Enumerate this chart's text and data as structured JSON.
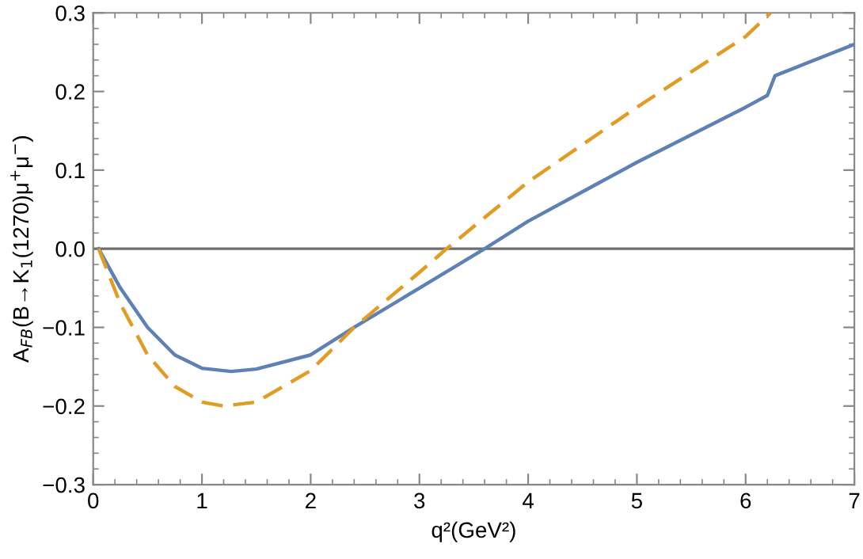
{
  "chart_data": {
    "type": "line",
    "xlabel": "q²(GeV²)",
    "ylabel": "A$_{FB}$(B→K$_{1}$(1270)μ$^{+}$μ$^{−}$)",
    "xlim": [
      0,
      7
    ],
    "ylim": [
      -0.3,
      0.3
    ],
    "xticks": [
      0,
      1,
      2,
      3,
      4,
      5,
      6,
      7,
      {
        "value": 0.2,
        "label": null
      },
      {
        "value": 0.4,
        "label": null
      },
      {
        "value": 0.6,
        "label": null
      },
      {
        "value": 0.8,
        "label": null
      },
      {
        "value": 1.2,
        "label": null
      },
      {
        "value": 1.4,
        "label": null
      },
      {
        "value": 1.6,
        "label": null
      },
      {
        "value": 1.8,
        "label": null
      },
      {
        "value": 2.2,
        "label": null
      },
      {
        "value": 2.4,
        "label": null
      },
      {
        "value": 2.6,
        "label": null
      },
      {
        "value": 2.8,
        "label": null
      },
      {
        "value": 3.2,
        "label": null
      },
      {
        "value": 3.4,
        "label": null
      },
      {
        "value": 3.6,
        "label": null
      },
      {
        "value": 3.8,
        "label": null
      },
      {
        "value": 4.2,
        "label": null
      },
      {
        "value": 4.4,
        "label": null
      },
      {
        "value": 4.6,
        "label": null
      },
      {
        "value": 4.8,
        "label": null
      },
      {
        "value": 5.2,
        "label": null
      },
      {
        "value": 5.4,
        "label": null
      },
      {
        "value": 5.6,
        "label": null
      },
      {
        "value": 5.8,
        "label": null
      },
      {
        "value": 6.2,
        "label": null
      },
      {
        "value": 6.4,
        "label": null
      },
      {
        "value": 6.6,
        "label": null
      },
      {
        "value": 6.8,
        "label": null
      }
    ],
    "yticks": [
      {
        "value": -0.3,
        "label": "−0.3"
      },
      {
        "value": -0.2,
        "label": "−0.2"
      },
      {
        "value": -0.1,
        "label": "−0.1"
      },
      {
        "value": 0,
        "label": "0.0"
      },
      0.1,
      0.2,
      0.3,
      {
        "value": -0.28,
        "label": null
      },
      {
        "value": -0.26,
        "label": null
      },
      {
        "value": -0.24,
        "label": null
      },
      {
        "value": -0.22,
        "label": null
      },
      {
        "value": -0.18,
        "label": null
      },
      {
        "value": -0.16,
        "label": null
      },
      {
        "value": -0.14,
        "label": null
      },
      {
        "value": -0.12,
        "label": null
      },
      {
        "value": -0.08,
        "label": null
      },
      {
        "value": -0.06,
        "label": null
      },
      {
        "value": -0.04,
        "label": null
      },
      {
        "value": -0.02,
        "label": null
      },
      {
        "value": 0.02,
        "label": null
      },
      {
        "value": 0.04,
        "label": null
      },
      {
        "value": 0.06,
        "label": null
      },
      {
        "value": 0.08,
        "label": null
      },
      {
        "value": 0.12,
        "label": null
      },
      {
        "value": 0.14,
        "label": null
      },
      {
        "value": 0.16,
        "label": null
      },
      {
        "value": 0.18,
        "label": null
      },
      {
        "value": 0.22,
        "label": null
      },
      {
        "value": 0.24,
        "label": null
      },
      {
        "value": 0.26,
        "label": null
      },
      {
        "value": 0.28,
        "label": null
      }
    ],
    "grid": false,
    "legend": false,
    "ref_lines": [
      {
        "axis": "y",
        "value": 0,
        "label": null,
        "color": "#6e6e6e"
      }
    ],
    "series": [
      {
        "color": "#5e81b5",
        "line_style": "solid",
        "x": [
          0.05,
          0.25,
          0.5,
          0.75,
          1.0,
          1.27,
          1.5,
          2.0,
          2.4,
          3.0,
          3.6,
          4.0,
          5.0,
          6.0,
          6.2,
          6.27,
          7.0
        ],
        "values": [
          0,
          -0.05,
          -0.1,
          -0.135,
          -0.152,
          -0.156,
          -0.153,
          -0.135,
          -0.1,
          -0.05,
          0,
          0.035,
          0.11,
          0.18,
          0.195,
          0.22,
          0.26
        ]
      },
      {
        "color": "#e19c24",
        "line_style": "dashed",
        "x": [
          0.05,
          0.25,
          0.5,
          0.75,
          1.0,
          1.2,
          1.5,
          2.0,
          2.4,
          3.0,
          3.25,
          4.0,
          5.0,
          6.0,
          6.23
        ],
        "values": [
          0,
          -0.07,
          -0.135,
          -0.175,
          -0.195,
          -0.2,
          -0.195,
          -0.155,
          -0.1,
          -0.03,
          0,
          0.085,
          0.18,
          0.27,
          0.3
        ]
      }
    ]
  }
}
